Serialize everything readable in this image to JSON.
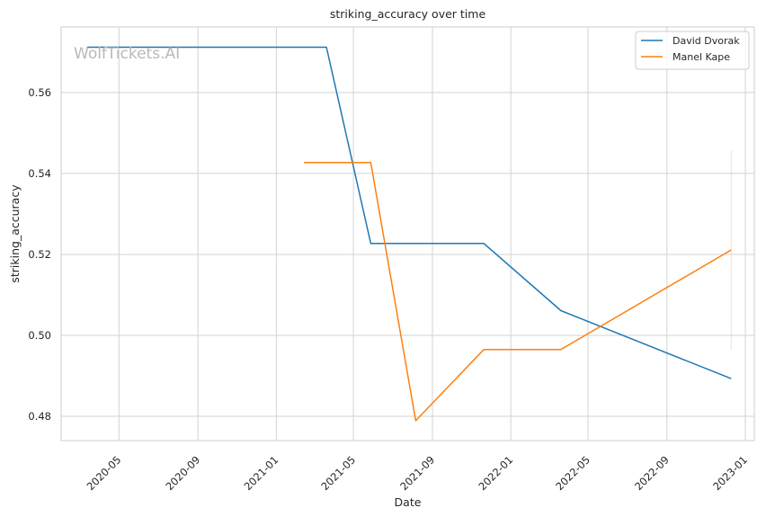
{
  "chart_data": {
    "type": "line",
    "title": "striking_accuracy over time",
    "xlabel": "Date",
    "ylabel": "striking_accuracy",
    "watermark": "WolfTickets.AI",
    "x_range": [
      "2020-02-01",
      "2023-01-15"
    ],
    "ylim": [
      0.474,
      0.5762
    ],
    "x_ticks": [
      "2020-05",
      "2020-09",
      "2021-01",
      "2021-05",
      "2021-09",
      "2022-01",
      "2022-05",
      "2022-09",
      "2023-01"
    ],
    "y_ticks": [
      0.48,
      0.5,
      0.52,
      0.54,
      0.56
    ],
    "y_tick_labels": [
      "0.48",
      "0.50",
      "0.52",
      "0.54",
      "0.56"
    ],
    "grid": true,
    "legend_position": "top-right",
    "series": [
      {
        "name": "David Dvorak",
        "color": "#1f77b4",
        "points": [
          {
            "x": "2020-03-12",
            "y": 0.5712
          },
          {
            "x": "2021-03-20",
            "y": 0.5712
          },
          {
            "x": "2021-05-28",
            "y": 0.5227
          },
          {
            "x": "2021-11-20",
            "y": 0.5227
          },
          {
            "x": "2022-03-20",
            "y": 0.5061
          },
          {
            "x": "2022-12-10",
            "y": 0.4893
          }
        ]
      },
      {
        "name": "Manel Kape",
        "color": "#ff7f0e",
        "points": [
          {
            "x": "2021-02-13",
            "y": 0.5427
          },
          {
            "x": "2021-05-28",
            "y": 0.5427
          },
          {
            "x": "2021-08-06",
            "y": 0.4789
          },
          {
            "x": "2021-11-20",
            "y": 0.4965
          },
          {
            "x": "2022-03-20",
            "y": 0.4965
          },
          {
            "x": "2022-12-10",
            "y": 0.5211
          }
        ],
        "error_band": {
          "x": "2022-12-10",
          "low": 0.4965,
          "high": 0.5457
        }
      }
    ]
  }
}
